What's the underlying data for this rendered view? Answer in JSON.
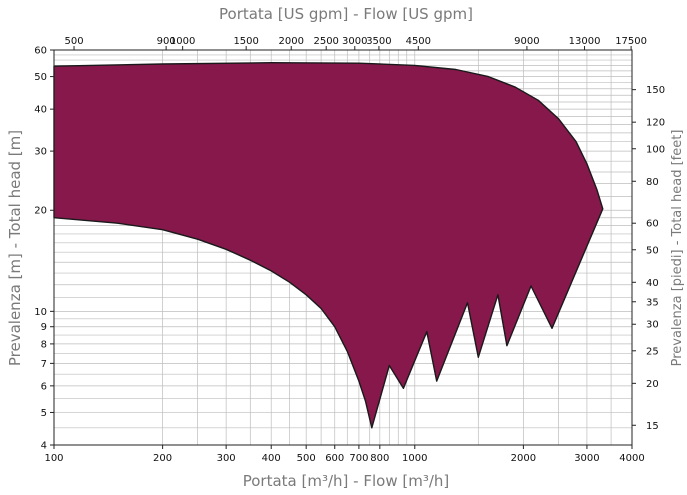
{
  "colors": {
    "fill": "#86184c",
    "outline": "#1a1a1a",
    "grid": "#bdbdbd",
    "axis_title": "#7a7a7a"
  },
  "chart_data": {
    "type": "area",
    "title": "",
    "xlabel": "Portata [m³/h] - Flow [m³/h]",
    "ylabel": "Prevalenza [m] - Total head [m]",
    "x2label": "Portata [US gpm] - Flow [US gpm]",
    "y2label": "Prevalenza [piedi] - Total head [feet]",
    "xscale": "log",
    "yscale": "log",
    "xlim": [
      100,
      4000
    ],
    "ylim": [
      4,
      60
    ],
    "x2lim": [
      440,
      17600
    ],
    "y2lim": [
      13.1,
      196.9
    ],
    "grid": true,
    "x_ticks": [
      100,
      200,
      300,
      400,
      500,
      600,
      700,
      800,
      1000,
      2000,
      3000,
      4000
    ],
    "x_tick_labels": [
      "100",
      "200",
      "300",
      "400",
      "500",
      "600",
      "700",
      "800",
      "1000",
      "2000",
      "3000",
      "4000"
    ],
    "y_ticks": [
      4,
      5,
      6,
      7,
      8,
      9,
      10,
      20,
      30,
      40,
      50,
      60
    ],
    "y_tick_labels": [
      "4",
      "5",
      "6",
      "7",
      "8",
      "9",
      "10",
      "20",
      "30",
      "40",
      "50",
      "60"
    ],
    "x2_ticks": [
      500,
      900,
      1000,
      1500,
      2000,
      2500,
      3000,
      3500,
      4500,
      9000,
      13000,
      17500
    ],
    "x2_tick_labels": [
      "500",
      "900",
      "1000",
      "1500",
      "2000",
      "2500",
      "3000",
      "3500",
      "4500",
      "9000",
      "13000",
      "17500"
    ],
    "y2_ticks": [
      15,
      20,
      25,
      30,
      35,
      40,
      50,
      60,
      80,
      100,
      120,
      150
    ],
    "y2_tick_labels": [
      "15",
      "20",
      "25",
      "30",
      "35",
      "40",
      "50",
      "60",
      "80",
      "100",
      "120",
      "150"
    ],
    "series": [
      {
        "upper": {
          "x": [
            100,
            200,
            400,
            700,
            1000,
            1300,
            1600,
            1900,
            2200,
            2500,
            2800,
            3000,
            3200,
            3320
          ],
          "y": [
            53.7,
            54.5,
            55.0,
            54.8,
            54.0,
            52.5,
            50.0,
            46.5,
            42.5,
            37.5,
            32.0,
            27.5,
            23.0,
            20.2
          ]
        },
        "lower": {
          "x": [
            100,
            150,
            200,
            250,
            300,
            350,
            400,
            450,
            500,
            550,
            600,
            650,
            700,
            730,
            760,
            850,
            930,
            1080,
            1150,
            1400,
            1500,
            1700,
            1800,
            2100,
            2400,
            3320
          ],
          "y": [
            19.0,
            18.3,
            17.5,
            16.4,
            15.3,
            14.2,
            13.2,
            12.2,
            11.2,
            10.2,
            9.0,
            7.6,
            6.2,
            5.4,
            4.5,
            6.9,
            5.9,
            8.7,
            6.2,
            10.6,
            7.3,
            11.2,
            7.9,
            11.9,
            8.9,
            20.2
          ]
        }
      }
    ]
  }
}
